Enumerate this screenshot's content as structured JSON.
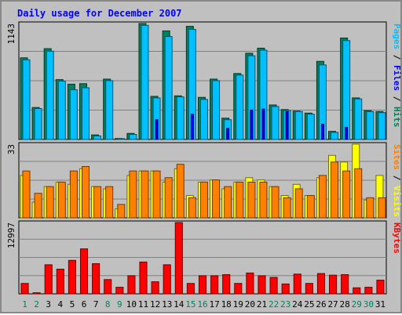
{
  "chart_data": {
    "type": "bar",
    "title": "Daily usage for December 2007",
    "days": [
      "1",
      "2",
      "3",
      "4",
      "5",
      "6",
      "7",
      "8",
      "9",
      "10",
      "11",
      "12",
      "13",
      "14",
      "15",
      "16",
      "17",
      "18",
      "19",
      "20",
      "21",
      "22",
      "23",
      "24",
      "25",
      "26",
      "27",
      "28",
      "29",
      "30",
      "31"
    ],
    "weekend_days": [
      "1",
      "2",
      "8",
      "9",
      "15",
      "16",
      "22",
      "23",
      "29",
      "30"
    ],
    "panels": [
      {
        "id": "hits_files_pages",
        "max_label": "1143",
        "ymax": 1143,
        "axis_label": [
          {
            "text": "Pages",
            "color": "#00c0ff"
          },
          {
            "text": " / ",
            "color": "#000000"
          },
          {
            "text": "Files",
            "color": "#0000ff"
          },
          {
            "text": " / ",
            "color": "#000000"
          },
          {
            "text": "Hits",
            "color": "#00805c"
          }
        ],
        "series": [
          {
            "name": "Hits",
            "color": "#00805c",
            "values": [
              805,
              315,
              895,
              590,
              545,
              550,
              45,
              595,
              10,
              60,
              1143,
              425,
              1070,
              430,
              1115,
              415,
              595,
              210,
              650,
              850,
              900,
              340,
              295,
              280,
              260,
              770,
              80,
              1000,
              410,
              285,
              275
            ]
          },
          {
            "name": "Files",
            "color": "#00c0ff",
            "values": [
              785,
              305,
              870,
              575,
              490,
              510,
              35,
              580,
              8,
              50,
              1125,
              410,
              1015,
              420,
              1085,
              395,
              580,
              195,
              635,
              825,
              880,
              325,
              285,
              275,
              250,
              735,
              70,
              975,
              400,
              275,
              265
            ]
          },
          {
            "name": "Pages",
            "color": "#0000ff",
            "values": [
              0,
              0,
              0,
              0,
              0,
              0,
              0,
              0,
              0,
              0,
              0,
              195,
              0,
              0,
              250,
              0,
              0,
              110,
              0,
              290,
              300,
              0,
              275,
              0,
              0,
              150,
              0,
              120,
              0,
              0,
              0
            ]
          }
        ]
      },
      {
        "id": "visits_sites",
        "max_label": "33",
        "ymax": 33,
        "axis_label": [
          {
            "text": "Sites",
            "color": "#ff8000"
          },
          {
            "text": " / ",
            "color": "#000000"
          },
          {
            "text": "Visits",
            "color": "#ffff00"
          }
        ],
        "series": [
          {
            "name": "Visits",
            "color": "#ffff00",
            "values": [
              19,
              7,
              14,
              16,
              15,
              22,
              14,
              13,
              4,
              19,
              21,
              21,
              16,
              22,
              10,
              16,
              17,
              13,
              16,
              18,
              17,
              14,
              10,
              15,
              10,
              18,
              28,
              25,
              33,
              8,
              19
            ]
          },
          {
            "name": "Sites",
            "color": "#ff8000",
            "values": [
              21,
              11,
              14,
              16,
              21,
              23,
              14,
              14,
              6,
              21,
              21,
              21,
              18,
              24,
              9,
              16,
              17,
              14,
              16,
              16,
              16,
              14,
              9,
              13,
              10,
              19,
              25,
              21,
              22,
              9,
              9
            ]
          }
        ]
      },
      {
        "id": "kbytes",
        "max_label": "12997",
        "ymax": 12997,
        "axis_label": [
          {
            "text": "KBytes",
            "color": "#ff0000"
          }
        ],
        "series": [
          {
            "name": "KBytes",
            "color": "#ff0000",
            "values": [
              1900,
              200,
              5300,
              4500,
              6100,
              8200,
              5500,
              2600,
              1200,
              3300,
              5800,
              2200,
              5300,
              12997,
              1900,
              3300,
              3300,
              3500,
              1900,
              3800,
              3300,
              3000,
              1800,
              3600,
              1900,
              3700,
              3400,
              3500,
              1100,
              1200,
              2500
            ]
          }
        ]
      }
    ]
  }
}
